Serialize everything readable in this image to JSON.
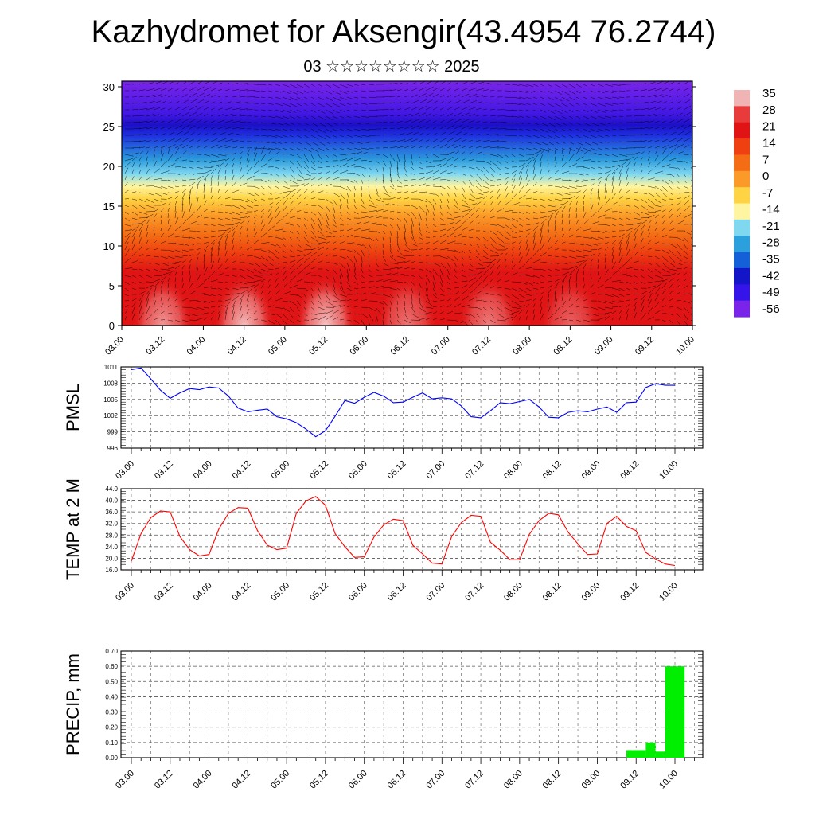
{
  "header": {
    "title": "Kazhydromet for Aksengir(43.4954 76.2744)",
    "subtitle": "03 ☆☆☆☆☆☆☆☆ 2025"
  },
  "time_labels": [
    "03.00",
    "03.12",
    "04.00",
    "04.12",
    "05.00",
    "05.12",
    "06.00",
    "06.12",
    "07.00",
    "07.12",
    "08.00",
    "08.12",
    "09.00",
    "09.12",
    "10.00"
  ],
  "chart_data": [
    {
      "type": "heatmap",
      "name": "cross-section",
      "x_categories": [
        "03.00",
        "03.12",
        "04.00",
        "04.12",
        "05.00",
        "05.12",
        "06.00",
        "06.12",
        "07.00",
        "07.12",
        "08.00",
        "08.12",
        "09.00",
        "09.12",
        "10.00"
      ],
      "ylim": [
        0,
        31
      ],
      "y_ticks": [
        0,
        5,
        10,
        15,
        20,
        25,
        30
      ],
      "colorbar": {
        "labels": [
          "35",
          "28",
          "21",
          "14",
          "7",
          "0",
          "-7",
          "-14",
          "-21",
          "-28",
          "-35",
          "-42",
          "-49",
          "-56"
        ],
        "colors": [
          "#f0b4b4",
          "#e83c3c",
          "#e01414",
          "#ee4010",
          "#f46c14",
          "#fb9a28",
          "#ffd444",
          "#fff5a0",
          "#7fd8f0",
          "#2ca0dc",
          "#1460d8",
          "#1414c8",
          "#3414e8",
          "#7a24ea"
        ]
      },
      "overlay": "wind vectors"
    },
    {
      "type": "line",
      "name": "PMSL",
      "ylabel": "PMSL",
      "ylim": [
        996,
        1011
      ],
      "y_ticks": [
        "996",
        "999",
        "1002",
        "1005",
        "1008",
        "1011"
      ],
      "color": "#0000ff",
      "values": [
        1010.5,
        1010.8,
        1008.8,
        1006.7,
        1005.2,
        1006.2,
        1007.0,
        1006.8,
        1007.3,
        1007.1,
        1005.6,
        1003.4,
        1002.7,
        1003.0,
        1003.2,
        1001.8,
        1001.4,
        1000.7,
        999.5,
        998.1,
        999.2,
        1001.9,
        1004.8,
        1004.3,
        1005.4,
        1006.3,
        1005.6,
        1004.4,
        1004.5,
        1005.4,
        1006.2,
        1005.1,
        1005.3,
        1005.1,
        1003.8,
        1001.8,
        1001.6,
        1002.9,
        1004.4,
        1004.2,
        1004.6,
        1005.0,
        1003.6,
        1001.7,
        1001.6,
        1002.6,
        1002.9,
        1002.7,
        1003.2,
        1003.6,
        1002.6,
        1004.4,
        1004.5,
        1007.2,
        1007.9,
        1007.6,
        1007.6
      ]
    },
    {
      "type": "line",
      "name": "TEMP at 2 M",
      "ylabel": "TEMP at 2 M",
      "ylim": [
        16,
        44
      ],
      "y_ticks": [
        "16.0",
        "20.0",
        "24.0",
        "28.0",
        "32.0",
        "36.0",
        "40.0",
        "44.0"
      ],
      "color": "#ff0000",
      "values": [
        19.0,
        28.5,
        34.0,
        36.3,
        36.0,
        27.5,
        23.0,
        20.8,
        21.3,
        30.0,
        35.5,
        37.5,
        37.3,
        29.5,
        24.5,
        23.0,
        23.5,
        35.5,
        39.8,
        41.3,
        38.3,
        28.5,
        24.0,
        20.3,
        20.5,
        27.3,
        31.5,
        33.5,
        33.0,
        24.5,
        21.5,
        18.3,
        18.0,
        27.5,
        32.3,
        34.8,
        34.5,
        25.5,
        22.8,
        19.5,
        19.5,
        28.3,
        33.0,
        35.5,
        35.0,
        29.0,
        25.0,
        21.3,
        21.5,
        32.0,
        34.5,
        31.0,
        29.5,
        22.0,
        19.8,
        18.0,
        17.5
      ]
    },
    {
      "type": "bar",
      "name": "PRECIP, mm",
      "ylabel": "PRECIP, mm",
      "ylim": [
        0,
        0.7
      ],
      "y_ticks": [
        "0.00",
        "0.10",
        "0.20",
        "0.30",
        "0.40",
        "0.50",
        "0.60",
        "0.70"
      ],
      "color": "#00ee00",
      "bars": [
        {
          "start_hour": 153,
          "end_hour": 159,
          "value": 0.05
        },
        {
          "start_hour": 159,
          "end_hour": 162,
          "value": 0.1
        },
        {
          "start_hour": 162,
          "end_hour": 165,
          "value": 0.04
        },
        {
          "start_hour": 165,
          "end_hour": 171,
          "value": 0.6
        }
      ]
    }
  ]
}
